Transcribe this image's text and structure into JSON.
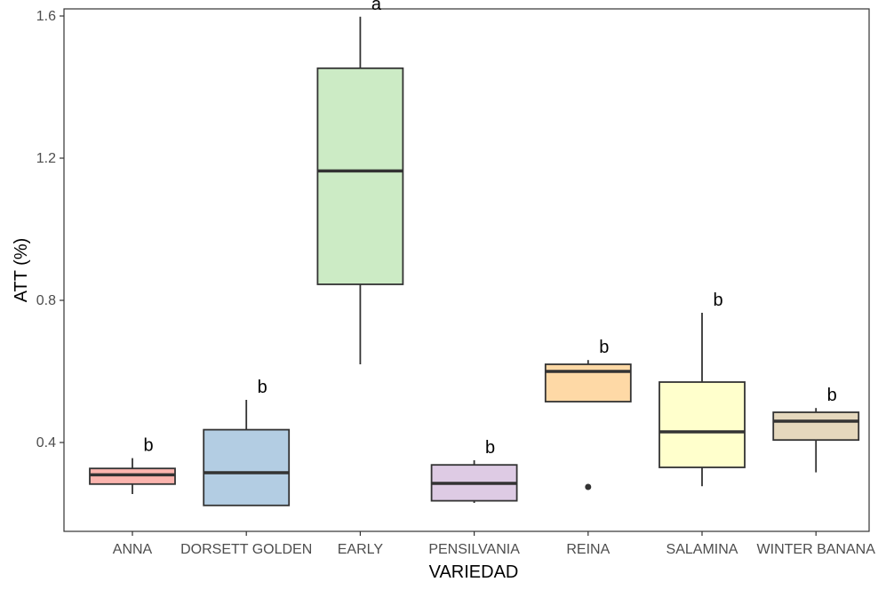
{
  "chart_data": {
    "type": "boxplot",
    "xlabel": "VARIEDAD",
    "ylabel": "ATT (%)",
    "ylim": [
      0.15,
      1.62
    ],
    "yticks": [
      0.4,
      0.8,
      1.2,
      1.6
    ],
    "ytick_labels": [
      "0.4",
      "0.8",
      "1.2",
      "1.6"
    ],
    "grid": false,
    "legend": "none",
    "categories": [
      "ANNA",
      "DORSETT GOLDEN",
      "EARLY",
      "PENSILVANIA",
      "REINA",
      "SALAMINA",
      "WINTER BANANA"
    ],
    "boxes": [
      {
        "category": "ANNA",
        "whisker_low": 0.255,
        "q1": 0.283,
        "median": 0.309,
        "q3": 0.327,
        "whisker_high": 0.356,
        "outliers": [],
        "color": "#FBB4AE",
        "label": "b"
      },
      {
        "category": "DORSETT GOLDEN",
        "whisker_low": 0.223,
        "q1": 0.223,
        "median": 0.315,
        "q3": 0.436,
        "whisker_high": 0.52,
        "outliers": [],
        "color": "#B3CDE3",
        "label": "b"
      },
      {
        "category": "EARLY",
        "whisker_low": 0.62,
        "q1": 0.845,
        "median": 1.164,
        "q3": 1.453,
        "whisker_high": 1.598,
        "outliers": [],
        "color": "#CCEBC5",
        "label": "a"
      },
      {
        "category": "PENSILVANIA",
        "whisker_low": 0.23,
        "q1": 0.236,
        "median": 0.285,
        "q3": 0.337,
        "whisker_high": 0.35,
        "outliers": [],
        "color": "#DECBE4",
        "label": "b"
      },
      {
        "category": "REINA",
        "whisker_low": 0.515,
        "q1": 0.515,
        "median": 0.6,
        "q3": 0.62,
        "whisker_high": 0.632,
        "outliers": [
          0.275
        ],
        "color": "#FED9A6",
        "label": "b"
      },
      {
        "category": "SALAMINA",
        "whisker_low": 0.277,
        "q1": 0.33,
        "median": 0.43,
        "q3": 0.57,
        "whisker_high": 0.765,
        "outliers": [],
        "color": "#FFFFCC",
        "label": "b"
      },
      {
        "category": "WINTER BANANA",
        "whisker_low": 0.316,
        "q1": 0.407,
        "median": 0.46,
        "q3": 0.485,
        "whisker_high": 0.497,
        "outliers": [],
        "color": "#E5D8BD",
        "label": "b"
      }
    ]
  }
}
